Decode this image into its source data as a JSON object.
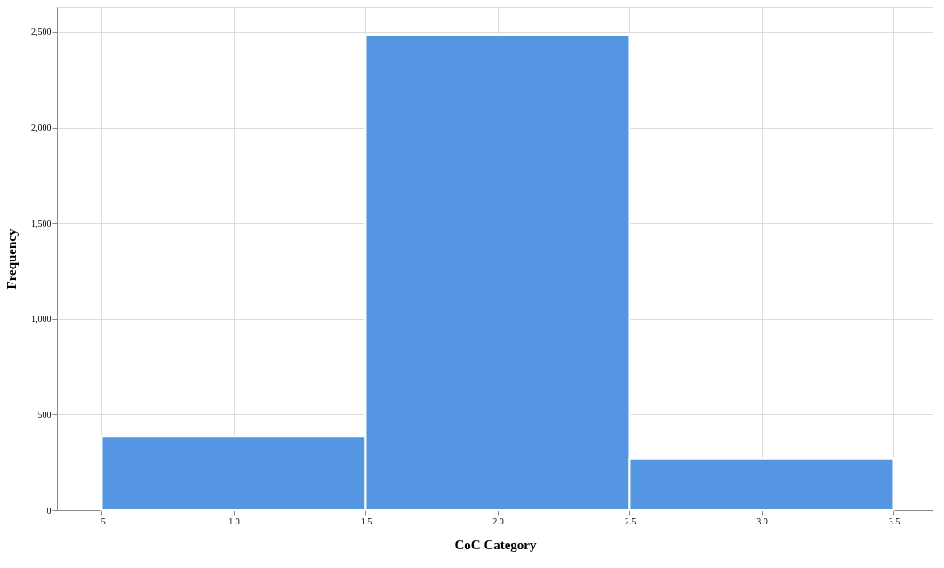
{
  "chart_data": {
    "type": "histogram",
    "xlabel": "CoC Category",
    "ylabel": "Frequency",
    "bins": [
      0.5,
      1.5,
      2.5,
      3.5
    ],
    "values": [
      385,
      2485,
      271
    ],
    "color": "#5596e3",
    "xlim": [
      0.33,
      3.65
    ],
    "ylim": [
      0,
      2630
    ],
    "xticks": [
      {
        "value": 0.5,
        "label": ".5"
      },
      {
        "value": 1.0,
        "label": "1.0"
      },
      {
        "value": 1.5,
        "label": "1.5"
      },
      {
        "value": 2.0,
        "label": "2.0"
      },
      {
        "value": 2.5,
        "label": "2.5"
      },
      {
        "value": 3.0,
        "label": "3.0"
      },
      {
        "value": 3.5,
        "label": "3.5"
      }
    ],
    "yticks": [
      {
        "value": 0,
        "label": "0"
      },
      {
        "value": 500,
        "label": "500"
      },
      {
        "value": 1000,
        "label": "1,000"
      },
      {
        "value": 1500,
        "label": "1,500"
      },
      {
        "value": 2000,
        "label": "2,000"
      },
      {
        "value": 2500,
        "label": "2,500"
      }
    ],
    "grid": true
  }
}
